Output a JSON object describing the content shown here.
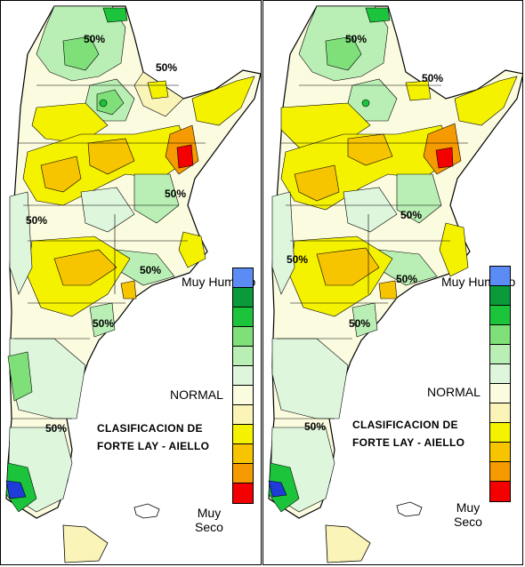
{
  "maps": [
    {
      "id": "left",
      "legend_top_label": "Muy Humedo",
      "legend_mid_label": "NORMAL",
      "legend_bottom_label": "Muy Seco",
      "classification_line1": "CLASIFICACION DE",
      "classification_line2": "FORTE LAY - AIELLO",
      "contour_labels": [
        "50%",
        "50%",
        "50%",
        "50%",
        "50%",
        "50%",
        "50%"
      ]
    },
    {
      "id": "right",
      "legend_top_label": "Muy Humedo",
      "legend_mid_label": "NORMAL",
      "legend_bottom_label": "Muy Seco",
      "classification_line1": "CLASIFICACION DE",
      "classification_line2": "FORTE LAY - AIELLO",
      "contour_labels": [
        "50%",
        "50%",
        "50%",
        "50%",
        "50%",
        "50%",
        "50%"
      ]
    }
  ],
  "legend_classes": [
    {
      "name": "muy-humedo",
      "color": "#5B8CF5"
    },
    {
      "name": "humedo-3",
      "color": "#0A9A3A"
    },
    {
      "name": "humedo-2",
      "color": "#1CC43C"
    },
    {
      "name": "humedo-1",
      "color": "#7FE07A"
    },
    {
      "name": "leve-humedo",
      "color": "#B9EFB4"
    },
    {
      "name": "normal-humedo",
      "color": "#DDF6DC"
    },
    {
      "name": "normal",
      "color": "#FBFBDF"
    },
    {
      "name": "leve-seco",
      "color": "#FBF4B8"
    },
    {
      "name": "seco-1",
      "color": "#F5F200"
    },
    {
      "name": "seco-2",
      "color": "#F7C400"
    },
    {
      "name": "seco-3",
      "color": "#F59A00"
    },
    {
      "name": "muy-seco",
      "color": "#F40000"
    }
  ]
}
